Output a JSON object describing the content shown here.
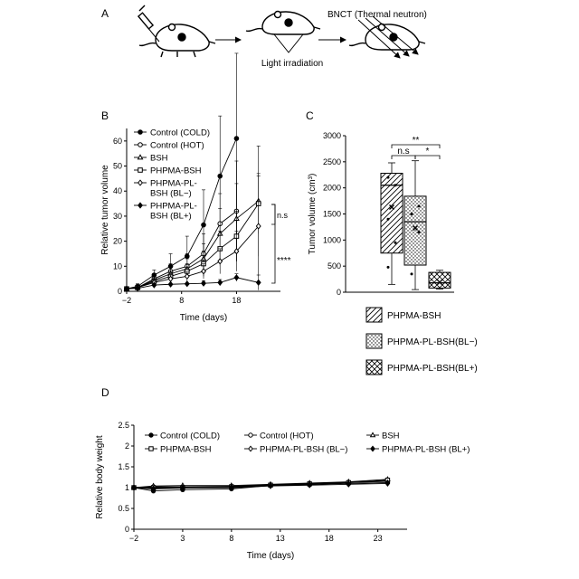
{
  "panels": {
    "a": {
      "letter": "A",
      "bnct_label": "BNCT (Thermal neutron)",
      "light_label": "Light irradiation"
    },
    "b": {
      "letter": "B"
    },
    "c": {
      "letter": "C"
    },
    "d": {
      "letter": "D"
    }
  },
  "colors": {
    "ink": "#000000",
    "background": "#ffffff",
    "muscle": "#e8e8e8"
  },
  "chart_data": [
    {
      "id": "B",
      "type": "line",
      "xlabel": "Time (days)",
      "ylabel": "Relative tumor volume",
      "xlim": [
        -2,
        26
      ],
      "ylim": [
        0,
        65
      ],
      "xticks": [
        -2,
        8,
        18
      ],
      "yticks": [
        0,
        10,
        20,
        30,
        40,
        50,
        60
      ],
      "legend_position": "top-left",
      "series": [
        {
          "name": "Control (COLD)",
          "marker": "circle-filled",
          "x": [
            -2,
            0,
            3,
            6,
            9,
            12,
            15,
            18
          ],
          "y": [
            1,
            2,
            6.5,
            10,
            14,
            26.5,
            46,
            61
          ],
          "err": [
            0.5,
            1,
            2,
            5,
            8,
            14,
            24,
            34
          ]
        },
        {
          "name": "Control (HOT)",
          "marker": "circle-open",
          "x": [
            -2,
            0,
            3,
            6,
            9,
            12,
            15,
            18
          ],
          "y": [
            1,
            1.5,
            5,
            8,
            10,
            15,
            27,
            32
          ],
          "err": [
            0.3,
            0.7,
            1.5,
            3,
            5,
            8,
            12,
            20
          ]
        },
        {
          "name": "BSH",
          "marker": "triangle-open",
          "x": [
            -2,
            0,
            3,
            6,
            9,
            12,
            15,
            18,
            22
          ],
          "y": [
            1,
            1.5,
            4.5,
            7,
            9,
            13,
            23,
            29,
            36
          ],
          "err": [
            0.3,
            0.5,
            1.5,
            2.5,
            4,
            6,
            10,
            14,
            22
          ]
        },
        {
          "name": "PHPMA-BSH",
          "marker": "square-open",
          "x": [
            -2,
            0,
            3,
            6,
            9,
            12,
            15,
            18,
            22
          ],
          "y": [
            1,
            1.5,
            4,
            6,
            8,
            11,
            17,
            22,
            35
          ],
          "err": [
            0.3,
            0.5,
            1,
            2,
            3,
            5,
            7,
            10,
            12
          ]
        },
        {
          "name": "PHPMA-PL-BSH (BL-)",
          "marker": "diamond-open",
          "x": [
            -2,
            0,
            3,
            6,
            9,
            12,
            15,
            18,
            22
          ],
          "y": [
            1,
            1.5,
            3.5,
            5,
            6,
            8,
            12,
            16,
            26
          ],
          "err": [
            0.3,
            0.5,
            1,
            1.5,
            2,
            3,
            5,
            8,
            20
          ]
        },
        {
          "name": "PHPMA-PL-BSH (BL+)",
          "marker": "diamond-filled",
          "x": [
            -2,
            0,
            3,
            6,
            9,
            12,
            15,
            18,
            22
          ],
          "y": [
            1,
            1.2,
            2.5,
            2.8,
            3,
            3.2,
            3.5,
            5.5,
            3.5
          ],
          "err": [
            0.2,
            0.2,
            0.5,
            0.6,
            0.8,
            1,
            1.2,
            1.5,
            3
          ]
        }
      ],
      "legend_lines": [
        [
          "Control (COLD)"
        ],
        [
          "Control (HOT)"
        ],
        [
          "BSH"
        ],
        [
          "PHPMA-BSH"
        ],
        [
          "PHPMA-PL-",
          "BSH (BL−)"
        ],
        [
          "PHPMA-PL-",
          "BSH (BL+)"
        ]
      ],
      "annotations": [
        "n.s",
        "****"
      ]
    },
    {
      "id": "C",
      "type": "box",
      "ylabel": "Tumor volume (cm³)",
      "ylim": [
        0,
        3000
      ],
      "yticks": [
        0,
        500,
        1000,
        1500,
        2000,
        2500,
        3000
      ],
      "legend_position": "bottom",
      "groups": [
        {
          "name": "PHPMA-BSH",
          "pattern": "hatch",
          "min": 150,
          "q1": 750,
          "median": 2050,
          "q3": 2280,
          "max": 2480,
          "mean": 1630,
          "points": [
            480,
            950,
            1400,
            2050,
            2200
          ]
        },
        {
          "name": "PHPMA-PL-BSH(BL−)",
          "pattern": "dots",
          "min": 50,
          "q1": 520,
          "median": 1350,
          "q3": 1840,
          "max": 2520,
          "mean": 1230,
          "points": [
            350,
            1150,
            1500,
            1650
          ]
        },
        {
          "name": "PHPMA-PL-BSH(BL+)",
          "pattern": "crosshatch",
          "min": 60,
          "q1": 80,
          "median": 180,
          "q3": 380,
          "max": 420,
          "mean": 190,
          "points": []
        }
      ],
      "significance": [
        {
          "label": "**",
          "between": [
            0,
            2
          ]
        },
        {
          "label": "n.s",
          "between": [
            0,
            1
          ]
        },
        {
          "label": "*",
          "between": [
            1,
            2
          ]
        }
      ]
    },
    {
      "id": "D",
      "type": "line",
      "xlabel": "Time (days)",
      "ylabel": "Relative body weight",
      "xlim": [
        -2,
        26
      ],
      "ylim": [
        0,
        2.5
      ],
      "xticks": [
        -2,
        3,
        8,
        13,
        18,
        23
      ],
      "yticks": [
        0,
        0.5,
        1,
        1.5,
        2,
        2.5
      ],
      "legend_position": "top",
      "series": [
        {
          "name": "Control (COLD)",
          "marker": "circle-filled",
          "x": [
            -2,
            0,
            3,
            8,
            12,
            16,
            20,
            24
          ],
          "y": [
            1,
            0.92,
            0.95,
            0.97,
            1.05,
            1.07,
            1.12,
            1.15
          ]
        },
        {
          "name": "Control (HOT)",
          "marker": "circle-open",
          "x": [
            -2,
            0,
            3,
            8,
            12,
            16,
            20,
            24
          ],
          "y": [
            1,
            1.02,
            1.02,
            1.03,
            1.07,
            1.1,
            1.13,
            1.17
          ]
        },
        {
          "name": "BSH",
          "marker": "triangle-open",
          "x": [
            -2,
            0,
            3,
            8,
            12,
            16,
            20,
            24
          ],
          "y": [
            1,
            1.04,
            1.05,
            1.05,
            1.08,
            1.11,
            1.14,
            1.2
          ]
        },
        {
          "name": "PHPMA-BSH",
          "marker": "square-open",
          "x": [
            -2,
            0,
            3,
            8,
            12,
            16,
            20,
            24
          ],
          "y": [
            1,
            1.0,
            1.0,
            1.02,
            1.06,
            1.09,
            1.12,
            1.18
          ]
        },
        {
          "name": "PHPMA-PL-BSH (BL−)",
          "marker": "diamond-open",
          "x": [
            -2,
            0,
            3,
            8,
            12,
            16,
            20,
            24
          ],
          "y": [
            1,
            0.98,
            1.0,
            1.01,
            1.05,
            1.08,
            1.1,
            1.12
          ]
        },
        {
          "name": "PHPMA-PL-BSH (BL+)",
          "marker": "diamond-filled",
          "x": [
            -2,
            0,
            3,
            8,
            12,
            16,
            20,
            24
          ],
          "y": [
            1,
            0.97,
            0.99,
            1.0,
            1.04,
            1.06,
            1.08,
            1.1
          ]
        }
      ]
    }
  ]
}
